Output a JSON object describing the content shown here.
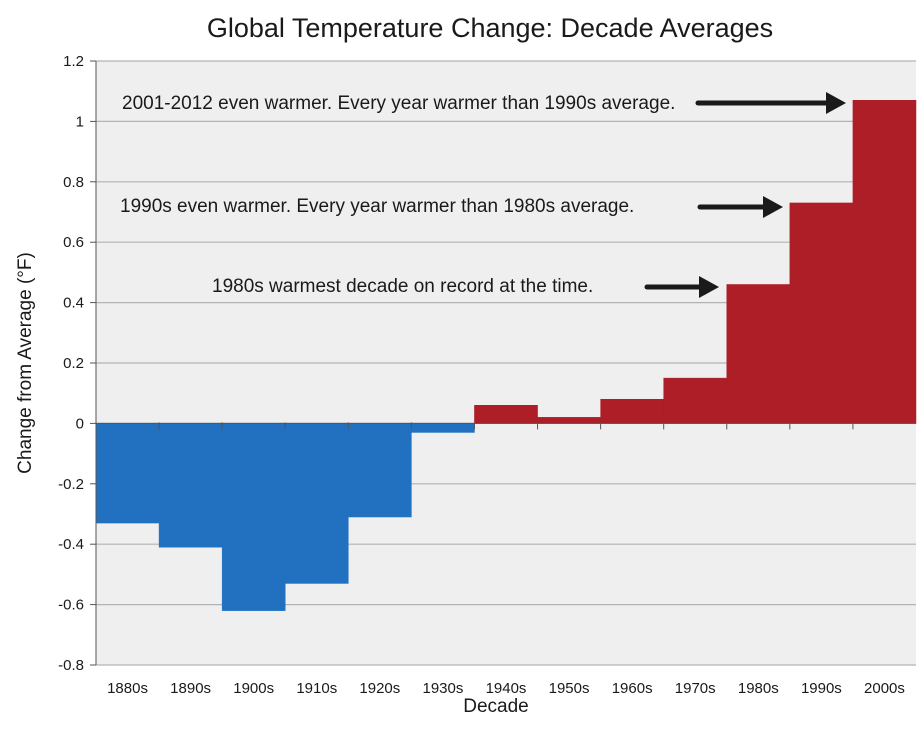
{
  "chart_data": {
    "type": "bar",
    "title": "Global Temperature Change: Decade Averages",
    "xlabel": "Decade",
    "ylabel": "Change from Average (°F)",
    "categories": [
      "1880s",
      "1890s",
      "1900s",
      "1910s",
      "1920s",
      "1930s",
      "1940s",
      "1950s",
      "1960s",
      "1970s",
      "1980s",
      "1990s",
      "2000s"
    ],
    "values": [
      -0.33,
      -0.41,
      -0.62,
      -0.53,
      -0.31,
      -0.03,
      0.06,
      0.02,
      0.08,
      0.15,
      0.46,
      0.73,
      1.07
    ],
    "ylim": [
      -0.8,
      1.2
    ],
    "yticks": [
      -0.8,
      -0.6,
      -0.4,
      -0.2,
      0,
      0.2,
      0.4,
      0.6,
      0.8,
      1,
      1.2
    ],
    "ytick_labels": [
      "-0.8",
      "-0.6",
      "-0.4",
      "-0.2",
      "0",
      "0.2",
      "0.4",
      "0.6",
      "0.8",
      "1",
      "1.2"
    ],
    "grid": true,
    "legend": "none",
    "colors": {
      "negative": "#2171c0",
      "positive": "#ad1e27",
      "plot_background": "#efefef",
      "grid": "#b3b3b3",
      "arrow": "#1a1a1a"
    },
    "annotations": [
      {
        "text": "2001-2012 even warmer. Every year warmer than 1990s average.",
        "points_to": "2000s"
      },
      {
        "text": "1990s even warmer. Every year warmer than 1980s average.",
        "points_to": "1990s"
      },
      {
        "text": "1980s warmest decade on record at the time.",
        "points_to": "1980s"
      }
    ]
  }
}
